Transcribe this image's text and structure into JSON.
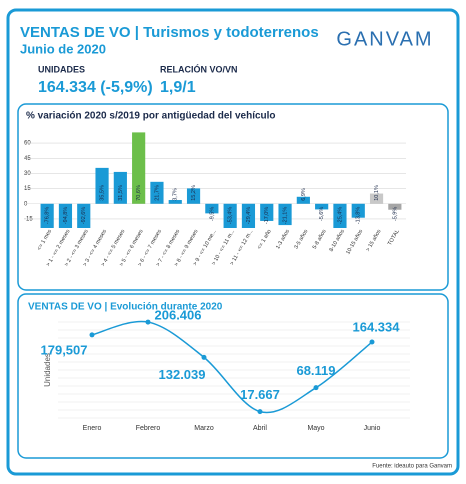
{
  "header": {
    "title": "VENTAS DE VO | Turismos y todoterrenos",
    "subtitle": "Junio de 2020",
    "logo": "GANVAM",
    "kpis": [
      {
        "label": "UNIDADES",
        "value": "164.334 (-5,9%)"
      },
      {
        "label": "RELACIÓN VO/VN",
        "value": "1,9/1"
      }
    ]
  },
  "chart_data": [
    {
      "type": "bar",
      "title": "% variación 2020 s/2019 por antigüedad del vehículo",
      "categories": [
        "<= 1 mes",
        "> 1 - <= 2 meses",
        "> 2 - <= 3 meses",
        "> 3 - <= 4 meses",
        "> 4 - <= 5 meses",
        "> 5 - <= 6 meses",
        "> 6 - <= 7 meses",
        "> 7 - <= 8 meses",
        "> 8 - <= 9 meses",
        "> 9 - <= 10 me...",
        "> 10 - <= 11 m...",
        "> 11 - <= 12 m...",
        "<= 1 año",
        "1-3 años",
        "3-5 años",
        "5-8 años",
        "8-10 años",
        "10-15 años",
        "> 15 años",
        "TOTAL"
      ],
      "values": [
        -76.8,
        -94.8,
        -92.6,
        35.5,
        31.5,
        70.6,
        21.7,
        3.7,
        15.2,
        -9.5,
        -53.4,
        -29.4,
        -17.0,
        -21.1,
        6.9,
        -5.6,
        -25.4,
        -13.8,
        10.1,
        -5.9
      ],
      "value_labels": [
        "-76,8%",
        "-94,8%",
        "-92,6%",
        "35,5%",
        "31,5%",
        "70,6%",
        "21,7%",
        "3,7%",
        "15,2%",
        "-9,5%",
        "-53,4%",
        "-29,4%",
        "-17,0%",
        "-21,1%",
        "6,9%",
        "-5,6%",
        "-25,4%",
        "-13,8%",
        "10,1%",
        "-5,9%"
      ],
      "colors": [
        "#1a9ad6",
        "#1a9ad6",
        "#1a9ad6",
        "#1a9ad6",
        "#1a9ad6",
        "#6cbf4a",
        "#1a9ad6",
        "#1a9ad6",
        "#1a9ad6",
        "#1a9ad6",
        "#1a9ad6",
        "#1a9ad6",
        "#1a9ad6",
        "#1a9ad6",
        "#1a9ad6",
        "#1a9ad6",
        "#1a9ad6",
        "#1a9ad6",
        "#c8c8c8",
        "#a6a6a6"
      ],
      "ylim": [
        -22,
        70
      ],
      "yticks": [
        60,
        45,
        30,
        15,
        0,
        -15
      ],
      "grid": true
    },
    {
      "type": "line",
      "title": "VENTAS DE VO | Evolución durante 2020",
      "y_label": "Unidades",
      "categories": [
        "Enero",
        "Febrero",
        "Marzo",
        "Abril",
        "Mayo",
        "Junio"
      ],
      "values": [
        179507,
        206406,
        132039,
        17667,
        68119,
        164334
      ],
      "value_labels": [
        "179,507",
        "206.406",
        "132.039",
        "17.667",
        "68.119",
        "164.334"
      ],
      "color": "#1a9ad6",
      "ylim": [
        0,
        215000
      ],
      "grid": true
    }
  ],
  "source": "Fuente: ideauto para Ganvam"
}
